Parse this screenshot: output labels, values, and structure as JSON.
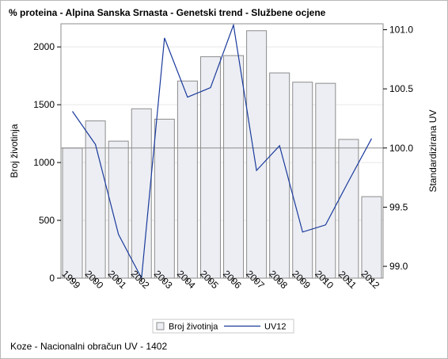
{
  "title": "% proteina - Alpina Sanska Srnasta - Genetski trend - Službene ocjene",
  "footnote": "Koze - Nacionalni obračun UV - 1402",
  "chart_data": {
    "type": "bar+line",
    "title": "% proteina - Alpina Sanska Srnasta - Genetski trend - Službene ocjene",
    "categories": [
      "1999",
      "2000",
      "2001",
      "2002",
      "2003",
      "2004",
      "2005",
      "2006",
      "2007",
      "2008",
      "2009",
      "2010",
      "2011",
      "2012"
    ],
    "bar_series": {
      "name": "Broj životinja",
      "axis": "left",
      "values": [
        1125,
        1360,
        1185,
        1465,
        1375,
        1705,
        1915,
        1925,
        2140,
        1775,
        1695,
        1685,
        1200,
        705
      ],
      "color": "#eceef3",
      "border_color": "#8c8c8c"
    },
    "line_series": {
      "name": "UV12",
      "axis": "right",
      "values": [
        100.31,
        100.03,
        99.27,
        98.9,
        100.93,
        100.43,
        100.51,
        101.04,
        99.81,
        100.02,
        99.29,
        99.35,
        99.72,
        100.08
      ],
      "color": "#1a3a9c"
    },
    "ylabel_left": "Broj životinja",
    "ylabel_right": "Standardizirana UV",
    "ylim_left": [
      0,
      2200
    ],
    "yticks_left": [
      0,
      500,
      1000,
      1500,
      2000
    ],
    "ylim_right": [
      98.9,
      101.05
    ],
    "yticks_right": [
      99.0,
      99.5,
      100.0,
      100.5,
      101.0
    ],
    "reference_line_right": 100.0,
    "grid": true,
    "legend_position": "bottom-center"
  },
  "tick_labels_left": [
    "0",
    "500",
    "1000",
    "1500",
    "2000"
  ],
  "tick_labels_right": [
    "99.0",
    "99.5",
    "100.0",
    "100.5",
    "101.0"
  ],
  "colors": {
    "bar_fill": "#eceef3",
    "bar_border": "#8c8c8c",
    "line": "#1a3a9c",
    "reference": "#8c8c8c",
    "grid": "#e6e6e6"
  }
}
